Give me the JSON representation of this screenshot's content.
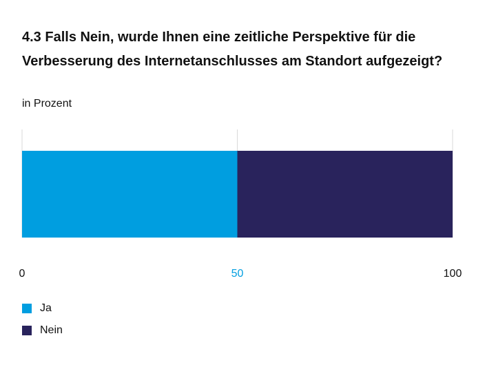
{
  "chart_data": {
    "type": "bar",
    "orientation": "horizontal",
    "stacked": true,
    "title": "4.3 Falls Nein, wurde Ihnen eine zeitliche Perspektive für die Verbesserung des Internetanschlusses am Standort aufgezeigt?",
    "subtitle": "in Prozent",
    "xlim": [
      0,
      100
    ],
    "xticks": [
      "0",
      "50",
      "100"
    ],
    "tick_colors": [
      "#111111",
      "#009EE0",
      "#111111"
    ],
    "grid": true,
    "legend_position": "bottom-left",
    "series": [
      {
        "name": "Ja",
        "value": 50,
        "color": "#009EE0"
      },
      {
        "name": "Nein",
        "value": 50,
        "color": "#29235C"
      }
    ]
  }
}
